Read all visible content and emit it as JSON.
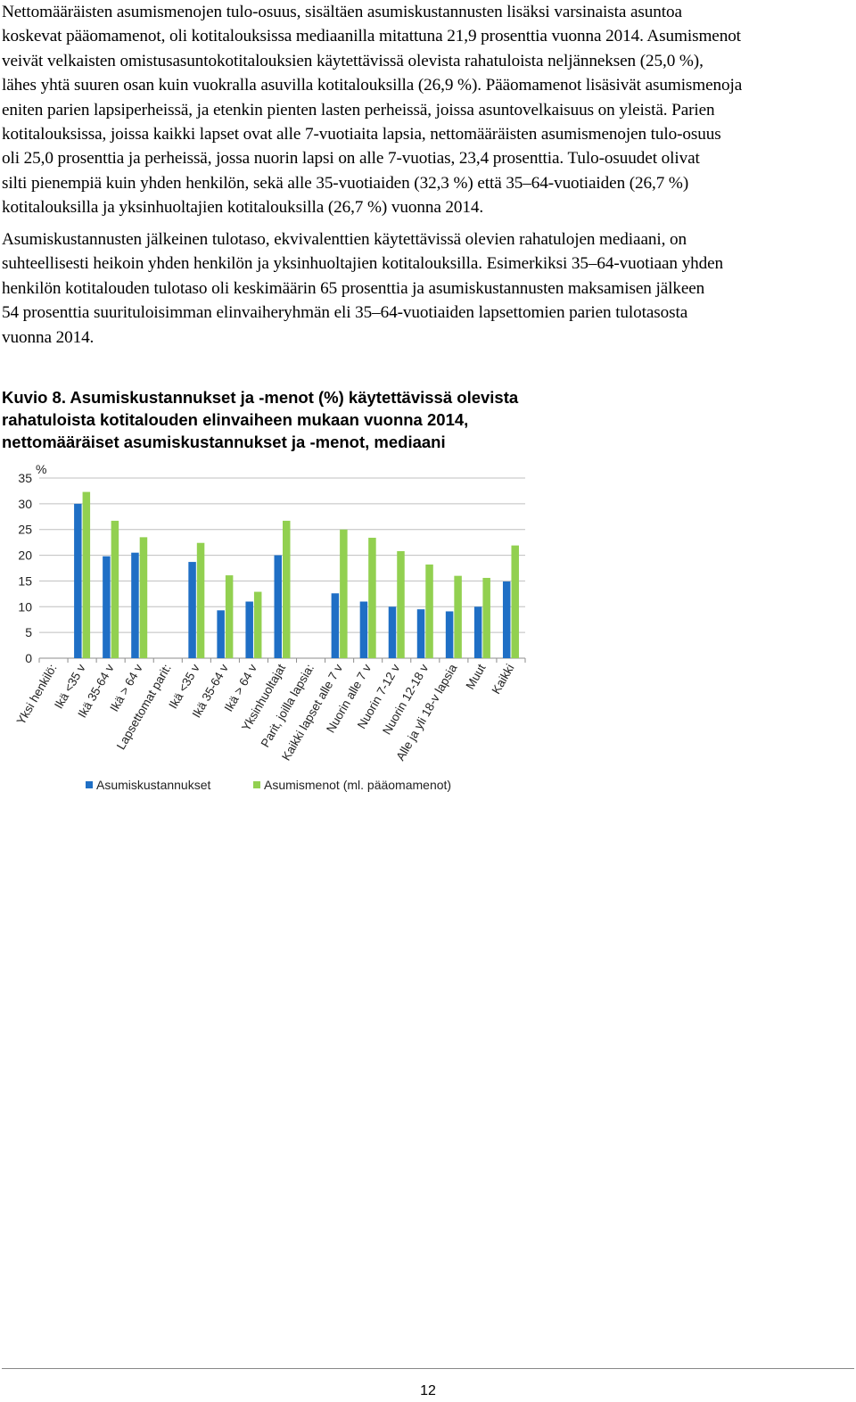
{
  "paragraphs": [
    {
      "lines": [
        "Nettomääräisten asumismenojen tulo-osuus, sisältäen asumiskustannusten lisäksi varsinaista asuntoa",
        "koskevat pääomamenot, oli kotitalouksissa mediaanilla mitattuna 21,9 prosenttia vuonna 2014. Asumismenot",
        "veivät velkaisten omistusasuntokotitalouksien käytettävissä olevista rahatuloista neljänneksen (25,0 %),",
        "lähes yhtä suuren osan kuin vuokralla asuvilla kotitalouksilla (26,9 %). Pääomamenot lisäsivät asumismenoja",
        "eniten parien lapsiperheissä, ja etenkin pienten lasten perheissä, joissa asuntovelkaisuus on yleistä. Parien",
        "kotitalouksissa, joissa kaikki lapset ovat alle 7-vuotiaita lapsia, nettomääräisten asumismenojen tulo-osuus",
        "oli 25,0 prosenttia ja perheissä, jossa nuorin lapsi on alle 7-vuotias, 23,4 prosenttia. Tulo-osuudet olivat",
        "silti pienempiä kuin yhden henkilön, sekä alle 35-vuotiaiden (32,3 %) että 35–64-vuotiaiden (26,7 %)",
        "kotitalouksilla ja yksinhuoltajien kotitalouksilla (26,7 %) vuonna 2014."
      ]
    },
    {
      "lines": [
        "Asumiskustannusten jälkeinen tulotaso, ekvivalenttien käytettävissä olevien rahatulojen mediaani, on",
        "suhteellisesti heikoin yhden henkilön ja yksinhuoltajien kotitalouksilla. Esimerkiksi 35–64-vuotiaan yhden",
        "henkilön kotitalouden tulotaso oli keskimäärin 65 prosenttia ja asumiskustannusten maksamisen jälkeen",
        "54 prosenttia suurituloisimman elinvaiheryhmän eli 35–64-vuotiaiden lapsettomien parien tulotasosta",
        "vuonna 2014."
      ]
    }
  ],
  "caption": {
    "lines": [
      "Kuvio 8. Asumiskustannukset ja -menot (%) käytettävissä olevista",
      "rahatuloista kotitalouden elinvaiheen mukaan vuonna 2014,",
      "nettomääräiset asumiskustannukset ja -menot, mediaani"
    ]
  },
  "chart_data": {
    "type": "bar",
    "ylabel": "%",
    "ylim": [
      0,
      35
    ],
    "yticks": [
      0,
      5,
      10,
      15,
      20,
      25,
      30,
      35
    ],
    "grid": true,
    "legend_position": "bottom",
    "colors": {
      "costs": "#1f6fc5",
      "expenses": "#92d050",
      "grid": "#bfbfbf"
    },
    "categories": [
      "Yksi henkilö:",
      "Ikä <35 v",
      "Ikä 35-64 v",
      "Ikä > 64 v",
      "Lapsettomat parit:",
      "Ikä <35 v",
      "Ikä 35-64 v",
      "Ikä > 64 v",
      "Yksinhuoltajat",
      "Parit, joilla lapsia:",
      "Kaikki lapset alle 7 v",
      "Nuorin alle 7 v",
      "Nuorin 7-12 v",
      "Nuorin 12-18 v",
      "Alle ja yli 18-v lapsia",
      "Muut",
      "Kaikki"
    ],
    "series": [
      {
        "name": "Asumiskustannukset",
        "values": [
          null,
          30.0,
          19.8,
          20.5,
          null,
          18.7,
          9.3,
          11.0,
          20.0,
          null,
          12.6,
          11.0,
          10.0,
          9.5,
          9.1,
          10.0,
          14.9
        ]
      },
      {
        "name": "Asumismenot (ml. pääomamenot)",
        "values": [
          null,
          32.3,
          26.7,
          23.5,
          null,
          22.4,
          16.1,
          12.9,
          26.7,
          null,
          25.0,
          23.4,
          20.8,
          18.2,
          16.0,
          15.6,
          21.9
        ]
      }
    ]
  },
  "footer": {
    "page_number": "12"
  }
}
